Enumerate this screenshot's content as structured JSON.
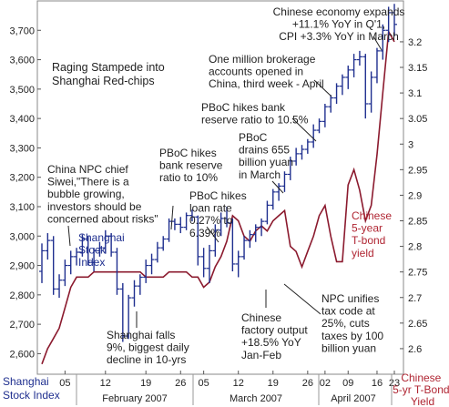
{
  "chart_data": {
    "type": "line",
    "title": "Raging Stampede into Shanghai Red-chips",
    "left_axis_label": "Shanghai Stock Index",
    "right_axis_label": "Chinese 5-yr T-Bond Yield",
    "left_ylim": [
      2530,
      3800
    ],
    "right_ylim": [
      2.55,
      3.28
    ],
    "left_ticks": [
      "2,600",
      "2,700",
      "2,800",
      "2,900",
      "3,000",
      "3,100",
      "3,200",
      "3,300",
      "3,400",
      "3,500",
      "3,600",
      "3,700"
    ],
    "right_ticks": [
      "2.6",
      "2.65",
      "2.7",
      "2.75",
      "2.8",
      "2.85",
      "2.9",
      "2.95",
      "3",
      "3.05",
      "3.1",
      "3.15",
      "3.2"
    ],
    "day_labels": [
      "05",
      "12",
      "19",
      "26",
      "05",
      "12",
      "19",
      "26",
      "02",
      "09",
      "16",
      "23"
    ],
    "month_labels": [
      "February 2007",
      "March 2007",
      "April 2007"
    ],
    "series": [
      {
        "name": "Shanghai Stock Index",
        "kind": "ohlc",
        "color": "#1f2f8f",
        "points": [
          [
            2880,
            2975,
            2840,
            2950
          ],
          [
            2950,
            3010,
            2920,
            2985
          ],
          [
            2985,
            3000,
            2800,
            2820
          ],
          [
            2820,
            2870,
            2790,
            2850
          ],
          [
            2850,
            2920,
            2830,
            2900
          ],
          [
            2900,
            2950,
            2870,
            2930
          ],
          [
            2930,
            2960,
            2900,
            2945
          ],
          [
            2945,
            3005,
            2930,
            2990
          ],
          [
            2990,
            3000,
            2900,
            2910
          ],
          [
            2910,
            2960,
            2880,
            2950
          ],
          [
            2950,
            2980,
            2930,
            2960
          ],
          [
            2960,
            3020,
            2940,
            3000
          ],
          [
            3000,
            3010,
            2930,
            2945
          ],
          [
            2945,
            2960,
            2800,
            2820
          ],
          [
            2820,
            2840,
            2640,
            2660
          ],
          [
            2660,
            2800,
            2650,
            2790
          ],
          [
            2790,
            2850,
            2760,
            2830
          ],
          [
            2830,
            2870,
            2800,
            2860
          ],
          [
            2860,
            2920,
            2840,
            2900
          ],
          [
            2900,
            2940,
            2870,
            2920
          ],
          [
            2920,
            2980,
            2910,
            2960
          ],
          [
            2960,
            3000,
            2950,
            2990
          ],
          [
            2990,
            3060,
            2980,
            3050
          ],
          [
            3050,
            3060,
            3020,
            3040
          ],
          [
            3040,
            3065,
            3010,
            3030
          ],
          [
            3030,
            3080,
            3020,
            3070
          ],
          [
            3070,
            3090,
            3050,
            3065
          ],
          [
            3065,
            3070,
            2900,
            2930
          ],
          [
            2930,
            2960,
            2860,
            2890
          ],
          [
            2890,
            2970,
            2840,
            2950
          ],
          [
            2950,
            3040,
            2930,
            3020
          ],
          [
            3020,
            3080,
            3000,
            3060
          ],
          [
            3060,
            3100,
            3030,
            3045
          ],
          [
            3045,
            3060,
            2880,
            2905
          ],
          [
            2905,
            2950,
            2860,
            2930
          ],
          [
            2930,
            3000,
            2920,
            2985
          ],
          [
            2985,
            3020,
            2960,
            3005
          ],
          [
            3005,
            3040,
            2980,
            3030
          ],
          [
            3030,
            3060,
            3000,
            3050
          ],
          [
            3050,
            3120,
            3040,
            3105
          ],
          [
            3105,
            3160,
            3090,
            3150
          ],
          [
            3150,
            3180,
            3120,
            3170
          ],
          [
            3170,
            3220,
            3150,
            3210
          ],
          [
            3210,
            3270,
            3190,
            3255
          ],
          [
            3255,
            3300,
            3240,
            3280
          ],
          [
            3280,
            3310,
            3260,
            3295
          ],
          [
            3295,
            3330,
            3280,
            3320
          ],
          [
            3320,
            3380,
            3300,
            3360
          ],
          [
            3360,
            3400,
            3350,
            3390
          ],
          [
            3390,
            3450,
            3370,
            3440
          ],
          [
            3440,
            3480,
            3420,
            3470
          ],
          [
            3470,
            3520,
            3450,
            3510
          ],
          [
            3510,
            3550,
            3480,
            3540
          ],
          [
            3540,
            3580,
            3500,
            3565
          ],
          [
            3565,
            3620,
            3540,
            3600
          ],
          [
            3600,
            3630,
            3580,
            3610
          ],
          [
            3610,
            3620,
            3400,
            3450
          ],
          [
            3450,
            3560,
            3420,
            3540
          ],
          [
            3540,
            3640,
            3520,
            3630
          ],
          [
            3630,
            3720,
            3600,
            3700
          ],
          [
            3700,
            3780,
            3660,
            3760
          ],
          [
            3760,
            3790,
            3680,
            3720
          ]
        ]
      },
      {
        "name": "Chinese 5-year T-bond yield",
        "kind": "line",
        "color": "#8b1a2e",
        "values": [
          2.57,
          2.6,
          2.62,
          2.64,
          2.68,
          2.72,
          2.74,
          2.74,
          2.74,
          2.75,
          2.75,
          2.75,
          2.75,
          2.75,
          2.75,
          2.75,
          2.75,
          2.75,
          2.74,
          2.74,
          2.74,
          2.74,
          2.75,
          2.75,
          2.75,
          2.75,
          2.74,
          2.74,
          2.72,
          2.73,
          2.76,
          2.78,
          2.81,
          2.86,
          2.85,
          2.82,
          2.81,
          2.83,
          2.84,
          2.83,
          2.85,
          2.86,
          2.87,
          2.8,
          2.79,
          2.76,
          2.79,
          2.82,
          2.86,
          2.88,
          2.82,
          2.77,
          2.77,
          2.92,
          2.95,
          2.91,
          2.85,
          2.88,
          2.98,
          3.1,
          3.22,
          3.2
        ]
      }
    ],
    "annotations": {
      "china_npc": [
        "China NPC chief",
        "Siwei,\"There is a",
        "bubble growing,",
        "investors should be",
        "concerned about risks\""
      ],
      "pboc_hikes_10": [
        "PBoC hikes",
        "bank reserve",
        "ratio to 10%"
      ],
      "pboc_loan_rate": [
        "PBoC hikes",
        "loan rate",
        "0.27% to",
        "6.39%"
      ],
      "shanghai_falls": [
        "Shanghai falls",
        "9%, biggest daily",
        "decline in 10-yrs"
      ],
      "factory_output": [
        "Chinese",
        "factory output",
        "+18.5% YoY",
        "Jan-Feb"
      ],
      "npc_tax": [
        "NPC unifies",
        "tax code at",
        "25%, cuts",
        "taxes by 100",
        "billion yuan"
      ],
      "pboc_drains": [
        "PBoC",
        "drains 655",
        "billion yuan",
        "in March"
      ],
      "pboc_hikes_105": [
        "PBoC hikes bank",
        "reserve ratio to 10.5%"
      ],
      "brokerage": [
        "One million brokerage",
        "accounts opened in",
        "China, third week - April"
      ],
      "economy": [
        "Chinese economy expands",
        "+11.1% YoY in Q'1,",
        "CPI +3.3% YoY in March"
      ],
      "shanghai_index_label": [
        "Shanghai",
        "Stock",
        "Index"
      ],
      "bond_label": [
        "Chinese",
        "5-year",
        "T-bond",
        "yield"
      ]
    }
  }
}
